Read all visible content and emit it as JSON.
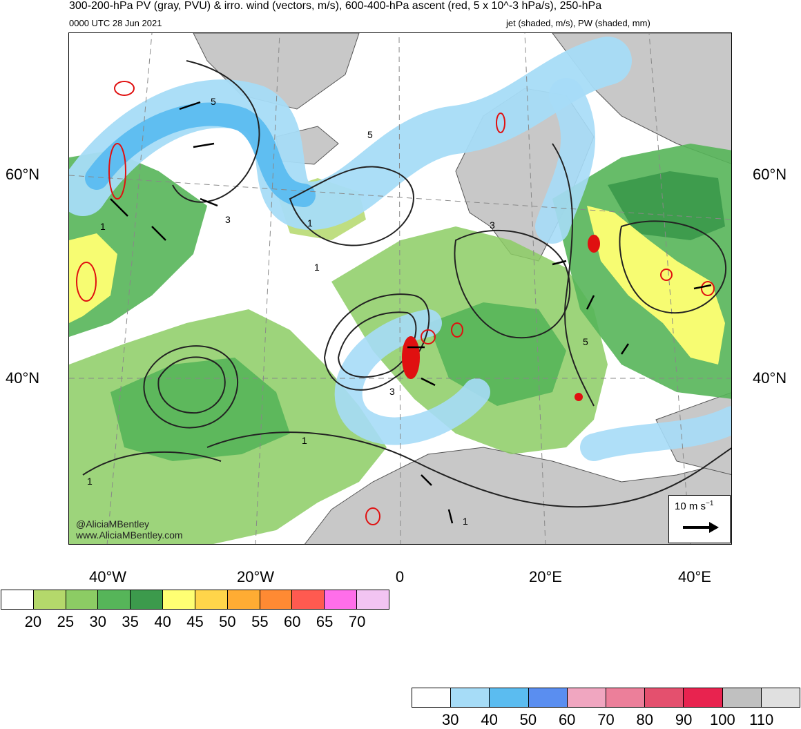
{
  "header": {
    "title_line1": "300-200-hPa PV (gray, PVU) & irro. wind (vectors, m/s), 600-400-hPa ascent (red, 5 x 10^-3 hPa/s), 250-hPa",
    "valid_time": "0000 UTC 28 Jun 2021",
    "title_line2_right": "jet (shaded, m/s), PW (shaded, mm)"
  },
  "map": {
    "lat_labels": [
      "60°N",
      "40°N"
    ],
    "lon_labels": [
      "40°W",
      "20°W",
      "0",
      "20°E",
      "40°E"
    ],
    "contour_labels": [
      "5",
      "3",
      "1",
      "5",
      "1",
      "3",
      "1",
      "1",
      "3",
      "5",
      "1",
      "1"
    ],
    "watermark_handle": "@AliciaMBentley",
    "watermark_site": "www.AliciaMBentley.com",
    "reference_vector_label": "10 m s",
    "reference_vector_unit_exponent": "−1",
    "colors": {
      "jet": "#5bbcf0",
      "jet_light": "#a6dcf7",
      "pw_green_light": "#b4d86b",
      "pw_green": "#6cbf5a",
      "pw_green_dark": "#3c9a4c",
      "pw_yellow": "#ffff73",
      "pv_gray": "#c8c8c8",
      "ascent_red": "#e01010"
    }
  },
  "pw_colorbar": {
    "colors": [
      "#ffffff",
      "#b4d86b",
      "#8ccc64",
      "#56b559",
      "#3c9a4c",
      "#ffff73",
      "#ffd54a",
      "#ffac33",
      "#ff8a33",
      "#ff5a50",
      "#ff6eea",
      "#f2c4f2"
    ],
    "labels": [
      "20",
      "25",
      "30",
      "35",
      "40",
      "45",
      "50",
      "55",
      "60",
      "65",
      "70"
    ]
  },
  "jet_colorbar": {
    "colors": [
      "#ffffff",
      "#a6dcf7",
      "#5bbcf0",
      "#5a8ef0",
      "#f0a6c0",
      "#ec7f9a",
      "#e4506e",
      "#e8234f",
      "#c0c0c0",
      "#e0e0e0"
    ],
    "labels": [
      "30",
      "40",
      "50",
      "60",
      "70",
      "80",
      "90",
      "100",
      "110"
    ]
  }
}
